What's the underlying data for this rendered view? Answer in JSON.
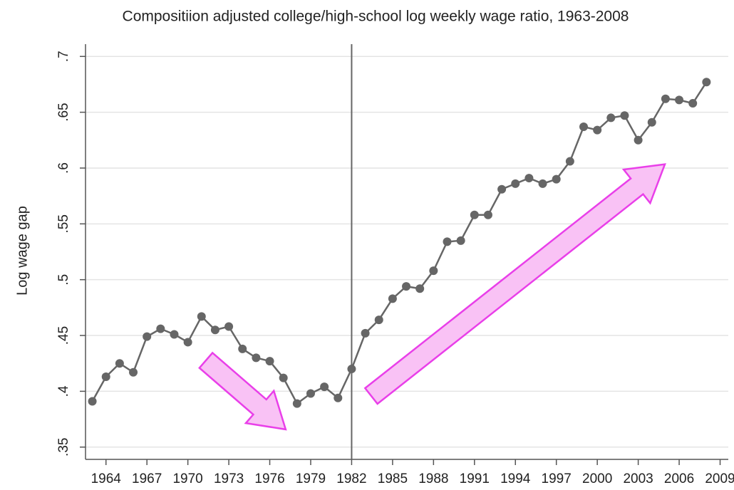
{
  "chart_data": {
    "type": "line",
    "title": "Compositiion adjusted college/high-school log weekly wage ratio, 1963-2008",
    "y_label": "Log wage gap",
    "x": [
      1963,
      1964,
      1965,
      1966,
      1967,
      1968,
      1969,
      1970,
      1971,
      1972,
      1973,
      1974,
      1975,
      1976,
      1977,
      1978,
      1979,
      1980,
      1981,
      1982,
      1983,
      1984,
      1985,
      1986,
      1987,
      1988,
      1989,
      1990,
      1991,
      1992,
      1993,
      1994,
      1995,
      1996,
      1997,
      1998,
      1999,
      2000,
      2001,
      2002,
      2003,
      2004,
      2005,
      2006,
      2007,
      2008
    ],
    "series": [
      {
        "color": "#666666",
        "values": [
          0.391,
          0.413,
          0.425,
          0.417,
          0.449,
          0.456,
          0.451,
          0.444,
          0.467,
          0.455,
          0.458,
          0.438,
          0.43,
          0.427,
          0.412,
          0.389,
          0.398,
          0.404,
          0.394,
          0.42,
          0.452,
          0.464,
          0.483,
          0.494,
          0.492,
          0.508,
          0.534,
          0.535,
          0.558,
          0.558,
          0.581,
          0.586,
          0.591,
          0.586,
          0.59,
          0.606,
          0.637,
          0.634,
          0.645,
          0.647,
          0.625,
          0.641,
          0.662,
          0.661,
          0.658,
          0.677
        ]
      }
    ],
    "xlim": [
      1962.5,
      2009.6
    ],
    "xticks": [
      1964,
      1967,
      1970,
      1973,
      1976,
      1979,
      1982,
      1985,
      1988,
      1991,
      1994,
      1997,
      2000,
      2003,
      2006,
      2009
    ],
    "ylim": [
      0.339,
      0.711
    ],
    "yticks": [
      {
        "value": 0.35,
        "label": ".35"
      },
      {
        "value": 0.4,
        "label": ".4"
      },
      {
        "value": 0.45,
        "label": ".45"
      },
      {
        "value": 0.5,
        "label": ".5"
      },
      {
        "value": 0.55,
        "label": ".55"
      },
      {
        "value": 0.6,
        "label": ".6"
      },
      {
        "value": 0.65,
        "label": ".65"
      },
      {
        "value": 0.7,
        "label": ".7"
      }
    ],
    "vline": 1982,
    "grid": true
  }
}
